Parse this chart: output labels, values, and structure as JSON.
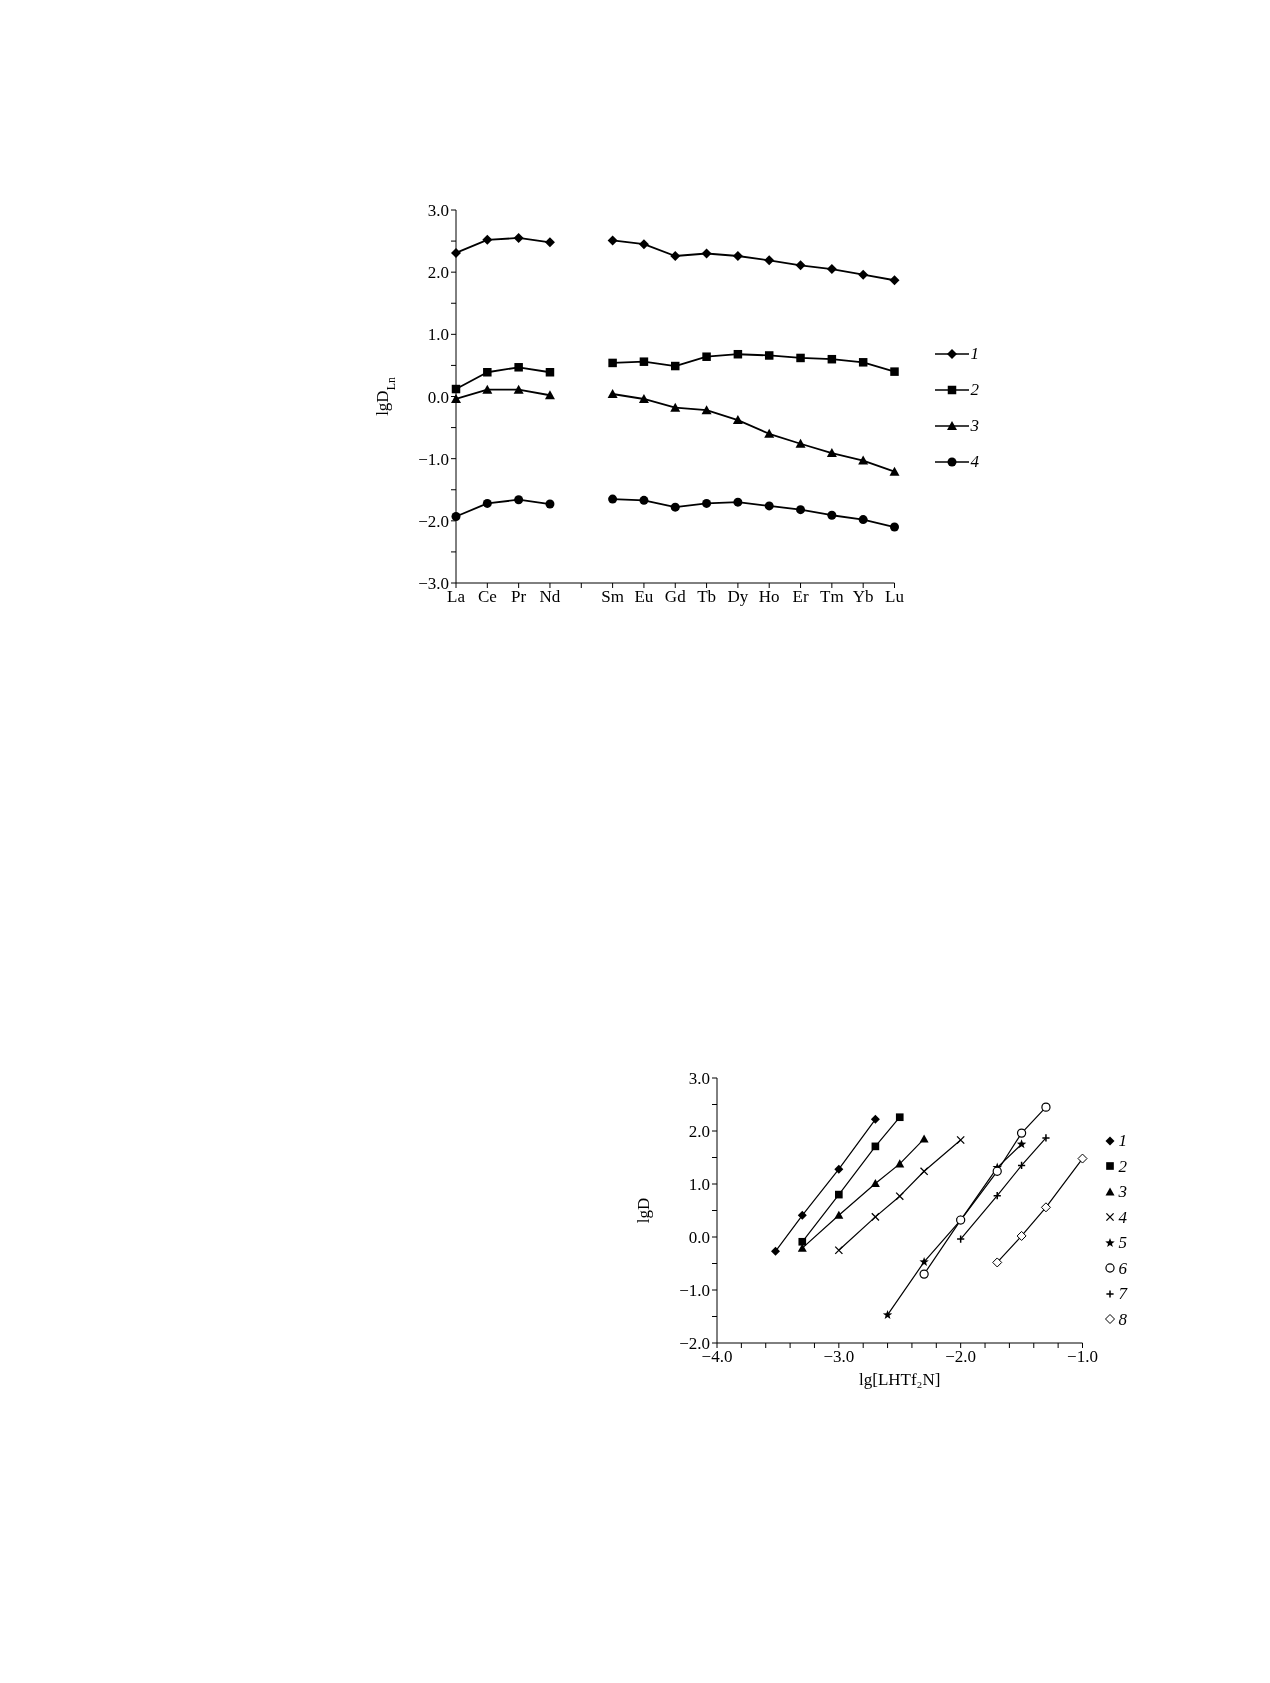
{
  "chart_data": [
    {
      "type": "line",
      "ylabel": "lgD$_{Ln}$",
      "categories": [
        "La",
        "Ce",
        "Pr",
        "Nd",
        null,
        "Sm",
        "Eu",
        "Gd",
        "Tb",
        "Dy",
        "Ho",
        "Er",
        "Tm",
        "Yb",
        "Lu"
      ],
      "ylim": [
        -3,
        3
      ],
      "yticks": [
        {
          "value": -3,
          "label": "−3.0"
        },
        {
          "value": -2.5,
          "label": null
        },
        {
          "value": -2,
          "label": "−2.0"
        },
        {
          "value": -1.5,
          "label": null
        },
        {
          "value": -1,
          "label": "−1.0"
        },
        {
          "value": -0.5,
          "label": null
        },
        {
          "value": 0,
          "label": "0.0"
        },
        {
          "value": 0.5,
          "label": null
        },
        {
          "value": 1,
          "label": "1.0"
        },
        {
          "value": 1.5,
          "label": null
        },
        {
          "value": 2,
          "label": "2.0"
        },
        {
          "value": 2.5,
          "label": null
        },
        {
          "value": 3,
          "label": "3.0"
        }
      ],
      "legend": "right",
      "series": [
        {
          "name": "1",
          "color": "#000000",
          "marker": "diamond",
          "values": [
            2.31,
            2.52,
            2.55,
            2.48,
            null,
            2.51,
            2.45,
            2.26,
            2.3,
            2.26,
            2.19,
            2.11,
            2.05,
            1.96,
            1.87
          ]
        },
        {
          "name": "2",
          "color": "#000000",
          "marker": "square",
          "values": [
            0.12,
            0.39,
            0.47,
            0.39,
            null,
            0.54,
            0.56,
            0.49,
            0.64,
            0.68,
            0.66,
            0.62,
            0.6,
            0.55,
            0.4
          ]
        },
        {
          "name": "3",
          "color": "#000000",
          "marker": "triangle",
          "values": [
            -0.04,
            0.11,
            0.11,
            0.02,
            null,
            0.04,
            -0.04,
            -0.18,
            -0.22,
            -0.38,
            -0.6,
            -0.76,
            -0.91,
            -1.03,
            -1.21
          ]
        },
        {
          "name": "4",
          "color": "#000000",
          "marker": "circle",
          "values": [
            -1.93,
            -1.72,
            -1.66,
            -1.73,
            null,
            -1.65,
            -1.67,
            -1.78,
            -1.72,
            -1.7,
            -1.76,
            -1.82,
            -1.91,
            -1.98,
            -2.1
          ]
        }
      ]
    },
    {
      "type": "line",
      "ylabel": "lgD",
      "xlabel": "lg[LHTf₂N]",
      "xlim": [
        -4,
        -1
      ],
      "ylim": [
        -2,
        3
      ],
      "xticks": [
        {
          "value": -4,
          "label": "−4.0"
        },
        {
          "value": -3.8,
          "label": null
        },
        {
          "value": -3.6,
          "label": null
        },
        {
          "value": -3.4,
          "label": null
        },
        {
          "value": -3.2,
          "label": null
        },
        {
          "value": -3,
          "label": "−3.0"
        },
        {
          "value": -2.8,
          "label": null
        },
        {
          "value": -2.6,
          "label": null
        },
        {
          "value": -2.4,
          "label": null
        },
        {
          "value": -2.2,
          "label": null
        },
        {
          "value": -2,
          "label": "−2.0"
        },
        {
          "value": -1.8,
          "label": null
        },
        {
          "value": -1.6,
          "label": null
        },
        {
          "value": -1.4,
          "label": null
        },
        {
          "value": -1.2,
          "label": null
        },
        {
          "value": -1,
          "label": "−1.0"
        }
      ],
      "yticks": [
        {
          "value": -2,
          "label": "−2.0"
        },
        {
          "value": -1.5,
          "label": null
        },
        {
          "value": -1,
          "label": "−1.0"
        },
        {
          "value": -0.5,
          "label": null
        },
        {
          "value": 0,
          "label": "0.0"
        },
        {
          "value": 0.5,
          "label": null
        },
        {
          "value": 1,
          "label": "1.0"
        },
        {
          "value": 1.5,
          "label": null
        },
        {
          "value": 2,
          "label": "2.0"
        },
        {
          "value": 2.5,
          "label": null
        },
        {
          "value": 3,
          "label": "3.0"
        }
      ],
      "legend": "right",
      "series": [
        {
          "name": "1",
          "color": "#000000",
          "marker": "diamond",
          "x": [
            -3.52,
            -3.3,
            -3.0,
            -2.7
          ],
          "values": [
            -0.27,
            0.41,
            1.28,
            2.22
          ]
        },
        {
          "name": "2",
          "color": "#000000",
          "marker": "square",
          "x": [
            -3.3,
            -3.0,
            -2.7,
            -2.5
          ],
          "values": [
            -0.09,
            0.8,
            1.71,
            2.26
          ]
        },
        {
          "name": "3",
          "color": "#000000",
          "marker": "triangle",
          "x": [
            -3.3,
            -3.0,
            -2.7,
            -2.5,
            -2.3
          ],
          "values": [
            -0.21,
            0.41,
            1.01,
            1.38,
            1.85
          ]
        },
        {
          "name": "4",
          "color": "#000000",
          "marker": "x",
          "x": [
            -3.0,
            -2.7,
            -2.5,
            -2.3,
            -2.0
          ],
          "values": [
            -0.25,
            0.38,
            0.77,
            1.24,
            1.83
          ]
        },
        {
          "name": "5",
          "color": "#000000",
          "marker": "star",
          "x": [
            -2.6,
            -2.3,
            -2.0,
            -1.7,
            -1.5
          ],
          "values": [
            -1.47,
            -0.47,
            0.32,
            1.31,
            1.75
          ]
        },
        {
          "name": "6",
          "color": "#000000",
          "marker": "circle-open",
          "x": [
            -2.3,
            -2.0,
            -1.7,
            -1.5,
            -1.3
          ],
          "values": [
            -0.7,
            0.32,
            1.24,
            1.96,
            2.45
          ]
        },
        {
          "name": "7",
          "color": "#000000",
          "marker": "cross",
          "x": [
            -2.0,
            -1.7,
            -1.5,
            -1.3
          ],
          "values": [
            -0.04,
            0.78,
            1.35,
            1.87
          ]
        },
        {
          "name": "8",
          "color": "#000000",
          "marker": "diamond-open",
          "x": [
            -1.7,
            -1.5,
            -1.3,
            -1.0
          ],
          "values": [
            -0.48,
            0.02,
            0.56,
            1.48
          ]
        }
      ]
    }
  ]
}
